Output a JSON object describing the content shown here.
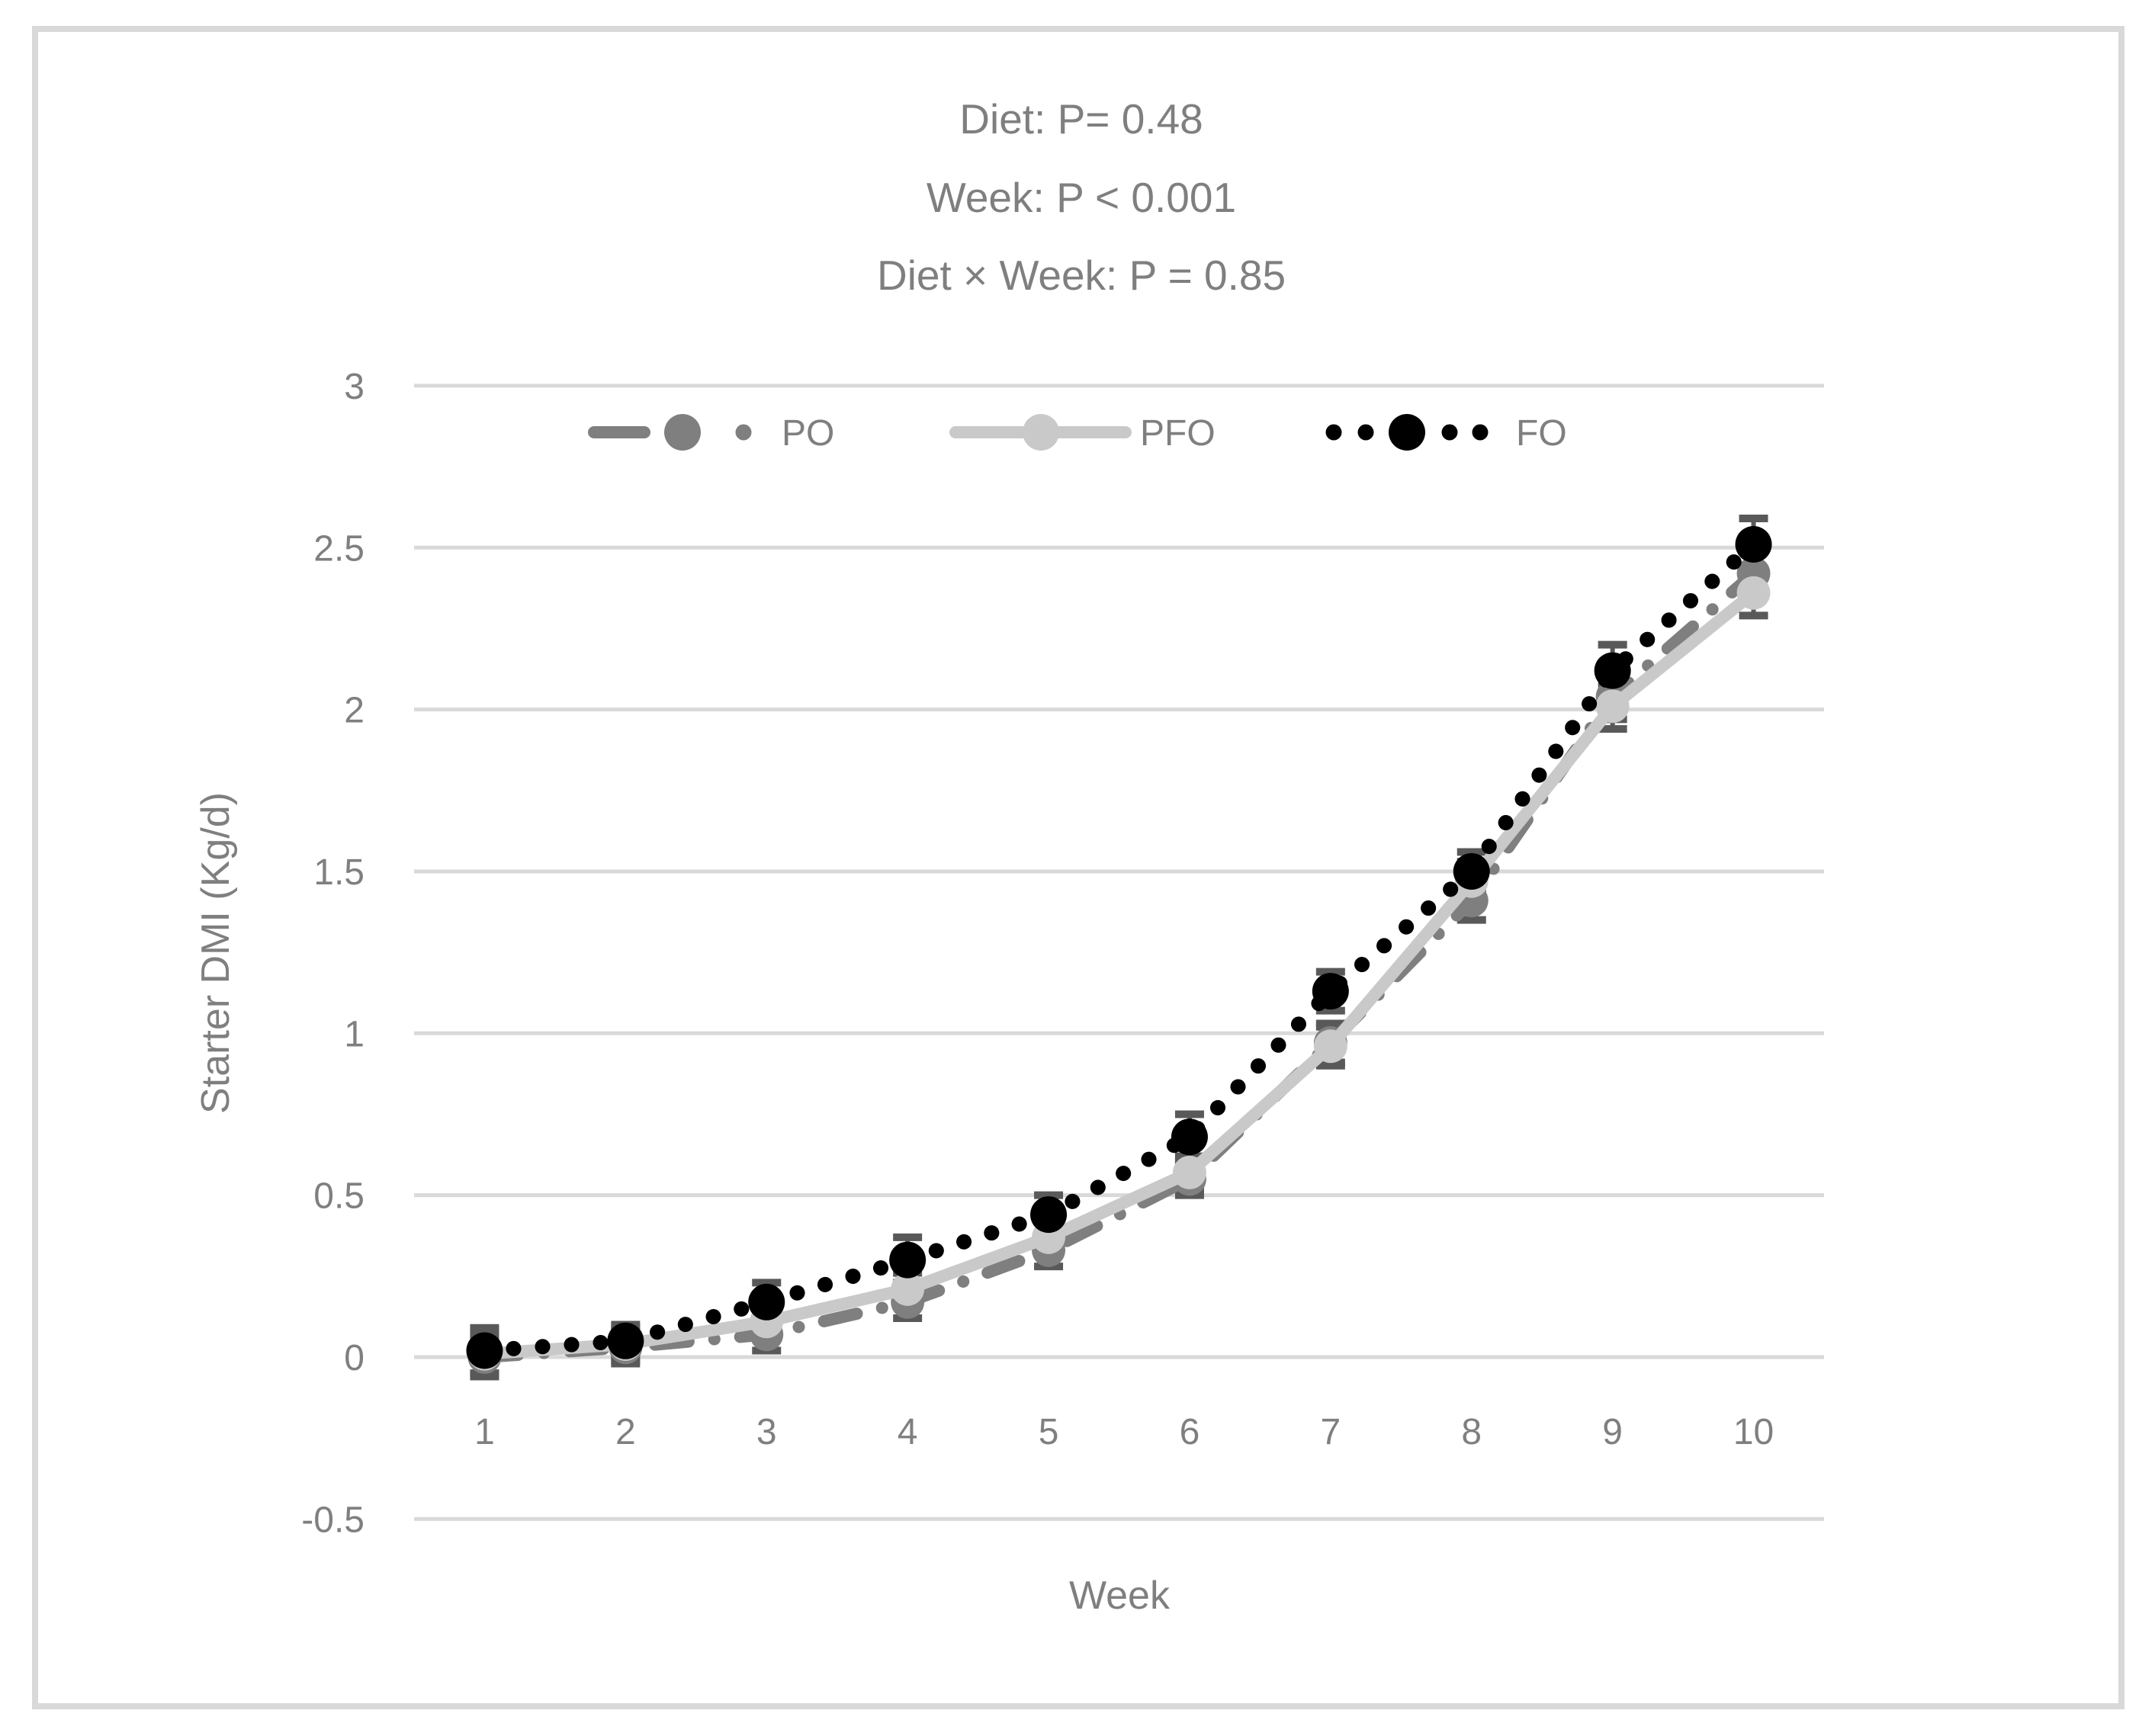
{
  "figure": {
    "background": "#FFFFFF",
    "border_color": "#D9D9D9"
  },
  "annotations": {
    "line1": "Diet: P= 0.48",
    "line2": "Week: P < 0.001",
    "line3": "Diet × Week: P = 0.85"
  },
  "chart_data": {
    "type": "line",
    "x": [
      1,
      2,
      3,
      4,
      5,
      6,
      7,
      8,
      9,
      10
    ],
    "xlabel": "Week",
    "ylabel": "Starter DMI (Kg/d)",
    "ylim": [
      -0.5,
      3
    ],
    "ytick_step": 0.5,
    "yticks": [
      -0.5,
      0,
      0.5,
      1,
      1.5,
      2,
      2.5,
      3
    ],
    "grid": true,
    "legend_position": "top-inside",
    "series": [
      {
        "name": "PO",
        "color": "#7F7F7F",
        "line_style": "dash-dot",
        "marker": "circle",
        "values": [
          0.0,
          0.03,
          0.07,
          0.17,
          0.33,
          0.55,
          0.97,
          1.41,
          2.04,
          2.42
        ],
        "errors": [
          0.06,
          0.05,
          0.05,
          0.05,
          0.05,
          0.05,
          0.06,
          0.06,
          0.07,
          0.07
        ]
      },
      {
        "name": "PFO",
        "color": "#C9C9C9",
        "line_style": "solid",
        "marker": "circle",
        "values": [
          0.01,
          0.04,
          0.11,
          0.21,
          0.37,
          0.57,
          0.96,
          1.47,
          2.01,
          2.36
        ],
        "errors": [
          0.06,
          0.05,
          0.05,
          0.05,
          0.05,
          0.05,
          0.06,
          0.06,
          0.07,
          0.07
        ]
      },
      {
        "name": "FO",
        "color": "#000000",
        "line_style": "dotted",
        "marker": "circle",
        "values": [
          0.02,
          0.05,
          0.17,
          0.3,
          0.44,
          0.68,
          1.13,
          1.5,
          2.12,
          2.51
        ],
        "errors": [
          0.07,
          0.05,
          0.06,
          0.07,
          0.06,
          0.07,
          0.06,
          0.06,
          0.08,
          0.08
        ]
      }
    ],
    "error_bar_color": "#595959",
    "gridline_color": "#D9D9D9",
    "text_color": "#7F7F7F"
  }
}
